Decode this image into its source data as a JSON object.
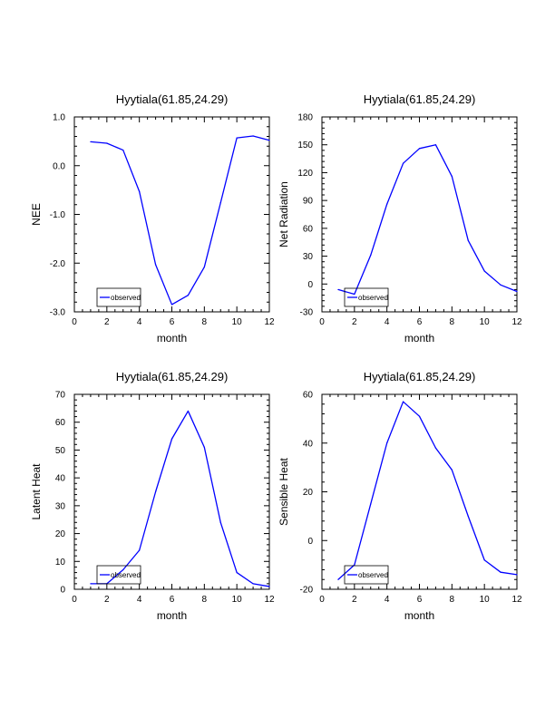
{
  "chart_data": [
    {
      "type": "line",
      "title": "Hyytiala(61.85,24.29)",
      "xlabel": "month",
      "ylabel": "NEE",
      "xlim": [
        0,
        12
      ],
      "ylim": [
        -3.0,
        1.0
      ],
      "x_ticks": [
        0,
        2,
        4,
        6,
        8,
        10,
        12
      ],
      "y_ticks": [
        -3.0,
        -2.0,
        -1.0,
        0.0,
        1.0
      ],
      "y_tick_labels": [
        "-3.0",
        "-2.0",
        "-1.0",
        "0.0",
        "1.0"
      ],
      "legend": "bottom-left",
      "series": [
        {
          "name": "observed",
          "color": "#0000ff",
          "x": [
            1,
            2,
            3,
            4,
            5,
            6,
            7,
            8,
            9,
            10,
            11,
            12
          ],
          "values": [
            0.49,
            0.46,
            0.32,
            -0.53,
            -2.03,
            -2.85,
            -2.66,
            -2.08,
            -0.76,
            0.57,
            0.61,
            0.52
          ]
        }
      ]
    },
    {
      "type": "line",
      "title": "Hyytiala(61.85,24.29)",
      "xlabel": "month",
      "ylabel": "Net Radiation",
      "xlim": [
        0,
        12
      ],
      "ylim": [
        -30,
        180
      ],
      "x_ticks": [
        0,
        2,
        4,
        6,
        8,
        10,
        12
      ],
      "y_ticks": [
        -30,
        0,
        30,
        60,
        90,
        120,
        150,
        180
      ],
      "y_tick_labels": [
        "-30",
        "0",
        "30",
        "60",
        "90",
        "120",
        "150",
        "180"
      ],
      "legend": "bottom-left",
      "series": [
        {
          "name": "observed",
          "color": "#0000ff",
          "x": [
            1,
            2,
            3,
            4,
            5,
            6,
            7,
            8,
            9,
            10,
            11,
            12
          ],
          "values": [
            -6,
            -11,
            31,
            86,
            130,
            146,
            150,
            116,
            47,
            14,
            -1,
            -8
          ]
        }
      ]
    },
    {
      "type": "line",
      "title": "Hyytiala(61.85,24.29)",
      "xlabel": "month",
      "ylabel": "Latent Heat",
      "xlim": [
        0,
        12
      ],
      "ylim": [
        0,
        70
      ],
      "x_ticks": [
        0,
        2,
        4,
        6,
        8,
        10,
        12
      ],
      "y_ticks": [
        0,
        10,
        20,
        30,
        40,
        50,
        60,
        70
      ],
      "y_tick_labels": [
        "0",
        "10",
        "20",
        "30",
        "40",
        "50",
        "60",
        "70"
      ],
      "legend": "bottom-left",
      "series": [
        {
          "name": "observed",
          "color": "#0000ff",
          "x": [
            1,
            2,
            3,
            4,
            5,
            6,
            7,
            8,
            9,
            10,
            11,
            12
          ],
          "values": [
            2,
            2,
            7,
            14,
            35,
            54,
            64,
            51,
            24,
            6,
            2,
            1
          ]
        }
      ]
    },
    {
      "type": "line",
      "title": "Hyytiala(61.85,24.29)",
      "xlabel": "month",
      "ylabel": "Sensible Heat",
      "xlim": [
        0,
        12
      ],
      "ylim": [
        -20,
        60
      ],
      "x_ticks": [
        0,
        2,
        4,
        6,
        8,
        10,
        12
      ],
      "y_ticks": [
        -20,
        0,
        20,
        40,
        60
      ],
      "y_tick_labels": [
        "-20",
        "0",
        "20",
        "40",
        "60"
      ],
      "legend": "bottom-left",
      "series": [
        {
          "name": "observed",
          "color": "#0000ff",
          "x": [
            1,
            2,
            3,
            4,
            5,
            6,
            7,
            8,
            9,
            10,
            11,
            12
          ],
          "values": [
            -16,
            -10,
            15,
            40,
            57,
            51,
            38,
            29,
            10,
            -8,
            -13,
            -14
          ]
        }
      ]
    }
  ]
}
